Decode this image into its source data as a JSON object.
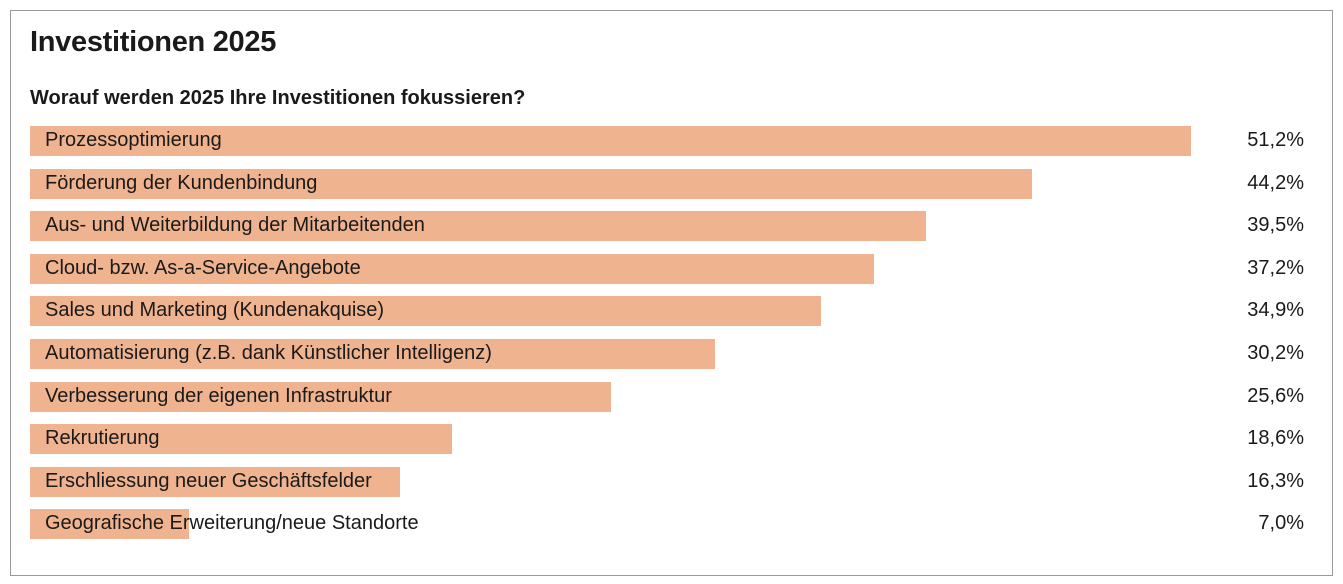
{
  "title": "Investitionen 2025",
  "subtitle": "Worauf werden 2025 Ihre Investitionen fokussieren?",
  "colors": {
    "bar": "#efb38f",
    "text": "#1a1a1a",
    "border": "#9a9a9a"
  },
  "chart_data": {
    "type": "bar",
    "orientation": "horizontal",
    "title": "Investitionen 2025",
    "subtitle": "Worauf werden 2025 Ihre Investitionen fokussieren?",
    "unit": "%",
    "categories": [
      "Prozessoptimierung",
      "Förderung der Kundenbindung",
      "Aus- und Weiterbildung der Mitarbeitenden",
      "Cloud- bzw. As-a-Service-Angebote",
      "Sales und Marketing (Kundenakquise)",
      "Automatisierung (z.B. dank Künstlicher Intelligenz)",
      "Verbesserung der eigenen Infrastruktur",
      "Rekrutierung",
      "Erschliessung neuer Geschäftsfelder",
      "Geografische Erweiterung/neue Standorte"
    ],
    "values": [
      51.2,
      44.2,
      39.5,
      37.2,
      34.9,
      30.2,
      25.6,
      18.6,
      16.3,
      7.0
    ],
    "value_labels": [
      "51,2%",
      "44,2%",
      "39,5%",
      "37,2%",
      "34,9%",
      "30,2%",
      "25,6%",
      "18,6%",
      "16,3%",
      "7,0%"
    ],
    "grid": false,
    "legend": "none"
  }
}
